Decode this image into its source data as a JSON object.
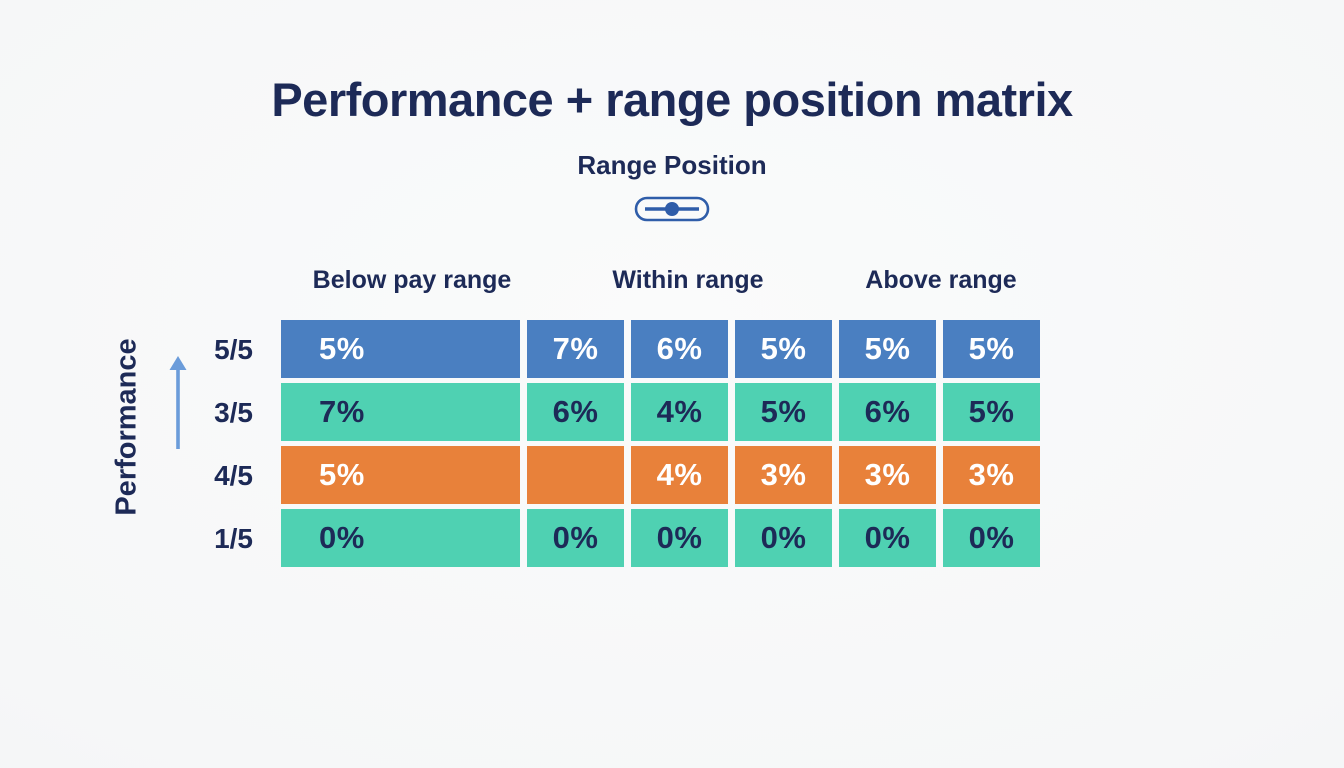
{
  "title": "Performance + range position matrix",
  "x_axis": {
    "label": "Range Position"
  },
  "y_axis": {
    "label": "Performance"
  },
  "icons": {
    "range_slider": "range-slider-icon",
    "performance_arrow": "arrow-up-icon"
  },
  "colors": {
    "navy_text": "#1d2a57",
    "cell_blue": "#4a7fc1",
    "cell_teal": "#4fd1b2",
    "cell_orange": "#e8813a",
    "cell_text_light": "#ffffff",
    "arrow_blue": "#6b9cda",
    "slider_blue": "#2f5da9",
    "background": "#f6f7f8"
  },
  "chart_data": {
    "type": "heatmap",
    "title": "Performance + range position matrix",
    "xlabel": "Range Position",
    "ylabel": "Performance",
    "column_groups": [
      "Below pay range",
      "Within range",
      "Above range"
    ],
    "legend_position": "none",
    "grid": false,
    "rows": [
      {
        "label": "5/5",
        "color": "#4a7fc1",
        "text_color": "#ffffff",
        "values": [
          "5%",
          "7%",
          "6%",
          "5%",
          "5%",
          "5%"
        ]
      },
      {
        "label": "3/5",
        "color": "#4fd1b2",
        "text_color": "#1d2a57",
        "values": [
          "7%",
          "6%",
          "4%",
          "5%",
          "6%",
          "5%"
        ]
      },
      {
        "label": "4/5",
        "color": "#e8813a",
        "text_color": "#ffffff",
        "values": [
          "5%",
          "",
          "4%",
          "3%",
          "3%",
          "3%"
        ]
      },
      {
        "label": "1/5",
        "color": "#4fd1b2",
        "text_color": "#1d2a57",
        "values": [
          "0%",
          "0%",
          "0%",
          "0%",
          "0%",
          "0%"
        ]
      }
    ]
  }
}
